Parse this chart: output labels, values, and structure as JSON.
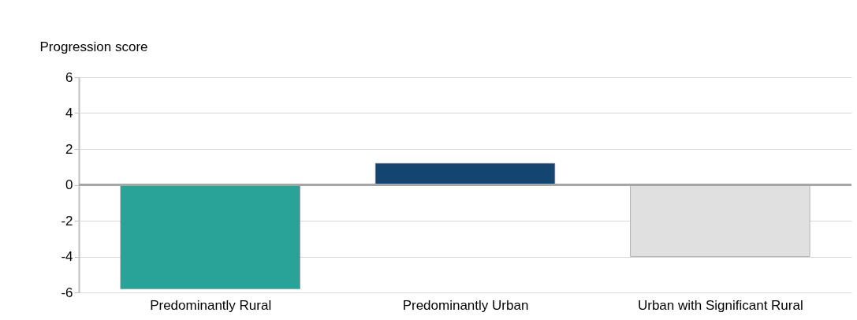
{
  "chart_data": {
    "type": "bar",
    "ylabel": "Progression score",
    "categories": [
      "Predominantly Rural",
      "Predominantly Urban",
      "Urban with Significant Rural"
    ],
    "values": [
      -5.8,
      1.2,
      -4.0
    ],
    "colors": [
      "#29a397",
      "#134570",
      "#e0e0e0"
    ],
    "ylim": [
      -6,
      6
    ],
    "yticks": [
      -6,
      -4,
      -2,
      0,
      2,
      4,
      6
    ],
    "grid": "y"
  }
}
